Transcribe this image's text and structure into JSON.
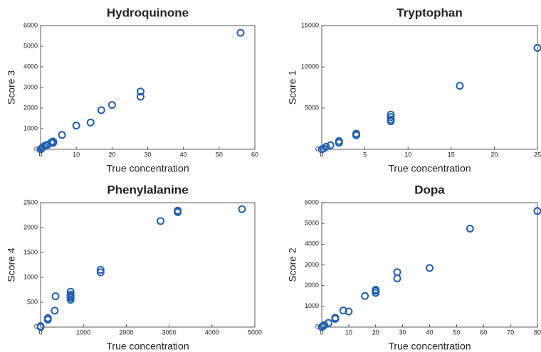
{
  "chart_data": [
    {
      "type": "scatter",
      "title": "Hydroquinone",
      "xlabel": "True concentration",
      "ylabel": "Score 3",
      "color": "#1f5fb4",
      "x": [
        0,
        0.2,
        0.5,
        1,
        1.5,
        2,
        3,
        3.5,
        3.5,
        6,
        10,
        14,
        17,
        20,
        28,
        28,
        56
      ],
      "values": [
        0,
        30,
        80,
        150,
        200,
        220,
        330,
        380,
        310,
        700,
        1150,
        1300,
        1900,
        2150,
        2800,
        2550,
        5650
      ],
      "xlim": [
        0,
        60
      ],
      "ylim": [
        0,
        6000
      ],
      "xticks": [
        0,
        10,
        20,
        30,
        40,
        50,
        60
      ],
      "yticks": [
        0,
        1000,
        2000,
        3000,
        4000,
        5000,
        6000
      ]
    },
    {
      "type": "scatter",
      "title": "Tryptophan",
      "xlabel": "True concentration",
      "ylabel": "Score 1",
      "color": "#1f5fb4",
      "x": [
        0,
        0.2,
        0.5,
        1,
        2,
        2,
        4,
        4,
        8,
        8,
        8,
        8,
        16,
        25
      ],
      "values": [
        0,
        100,
        300,
        500,
        800,
        1000,
        1700,
        1900,
        3400,
        3600,
        3900,
        4200,
        7700,
        12300
      ],
      "xlim": [
        0,
        25
      ],
      "ylim": [
        0,
        15000
      ],
      "xticks": [
        0,
        5,
        10,
        15,
        20,
        25
      ],
      "yticks": [
        0,
        5000,
        10000,
        15000
      ]
    },
    {
      "type": "scatter",
      "title": "Phenylalanine",
      "xlabel": "True concentration",
      "ylabel": "Score 4",
      "color": "#1f5fb4",
      "x": [
        0,
        0,
        170,
        170,
        330,
        350,
        700,
        700,
        700,
        700,
        700,
        1400,
        1400,
        2800,
        3200,
        3200,
        4700
      ],
      "values": [
        0,
        20,
        150,
        180,
        330,
        620,
        550,
        590,
        620,
        650,
        710,
        1100,
        1150,
        2130,
        2310,
        2340,
        2370
      ],
      "xlim": [
        0,
        5000
      ],
      "ylim": [
        0,
        2500
      ],
      "xticks": [
        0,
        1000,
        2000,
        3000,
        4000,
        5000
      ],
      "yticks": [
        0,
        500,
        1000,
        1500,
        2000,
        2500
      ]
    },
    {
      "type": "scatter",
      "title": "Dopa",
      "xlabel": "True concentration",
      "ylabel": "Score 2",
      "color": "#1f5fb4",
      "x": [
        0,
        0.5,
        1,
        2.5,
        5,
        5,
        8,
        10,
        16,
        20,
        20,
        20,
        28,
        28,
        40,
        55,
        80
      ],
      "values": [
        0,
        50,
        100,
        200,
        400,
        450,
        800,
        750,
        1500,
        1650,
        1750,
        1800,
        2350,
        2650,
        2850,
        4750,
        5600
      ],
      "xlim": [
        0,
        80
      ],
      "ylim": [
        0,
        6000
      ],
      "xticks": [
        0,
        10,
        20,
        30,
        40,
        50,
        60,
        70,
        80
      ],
      "yticks": [
        0,
        1000,
        2000,
        3000,
        4000,
        5000,
        6000
      ]
    }
  ]
}
